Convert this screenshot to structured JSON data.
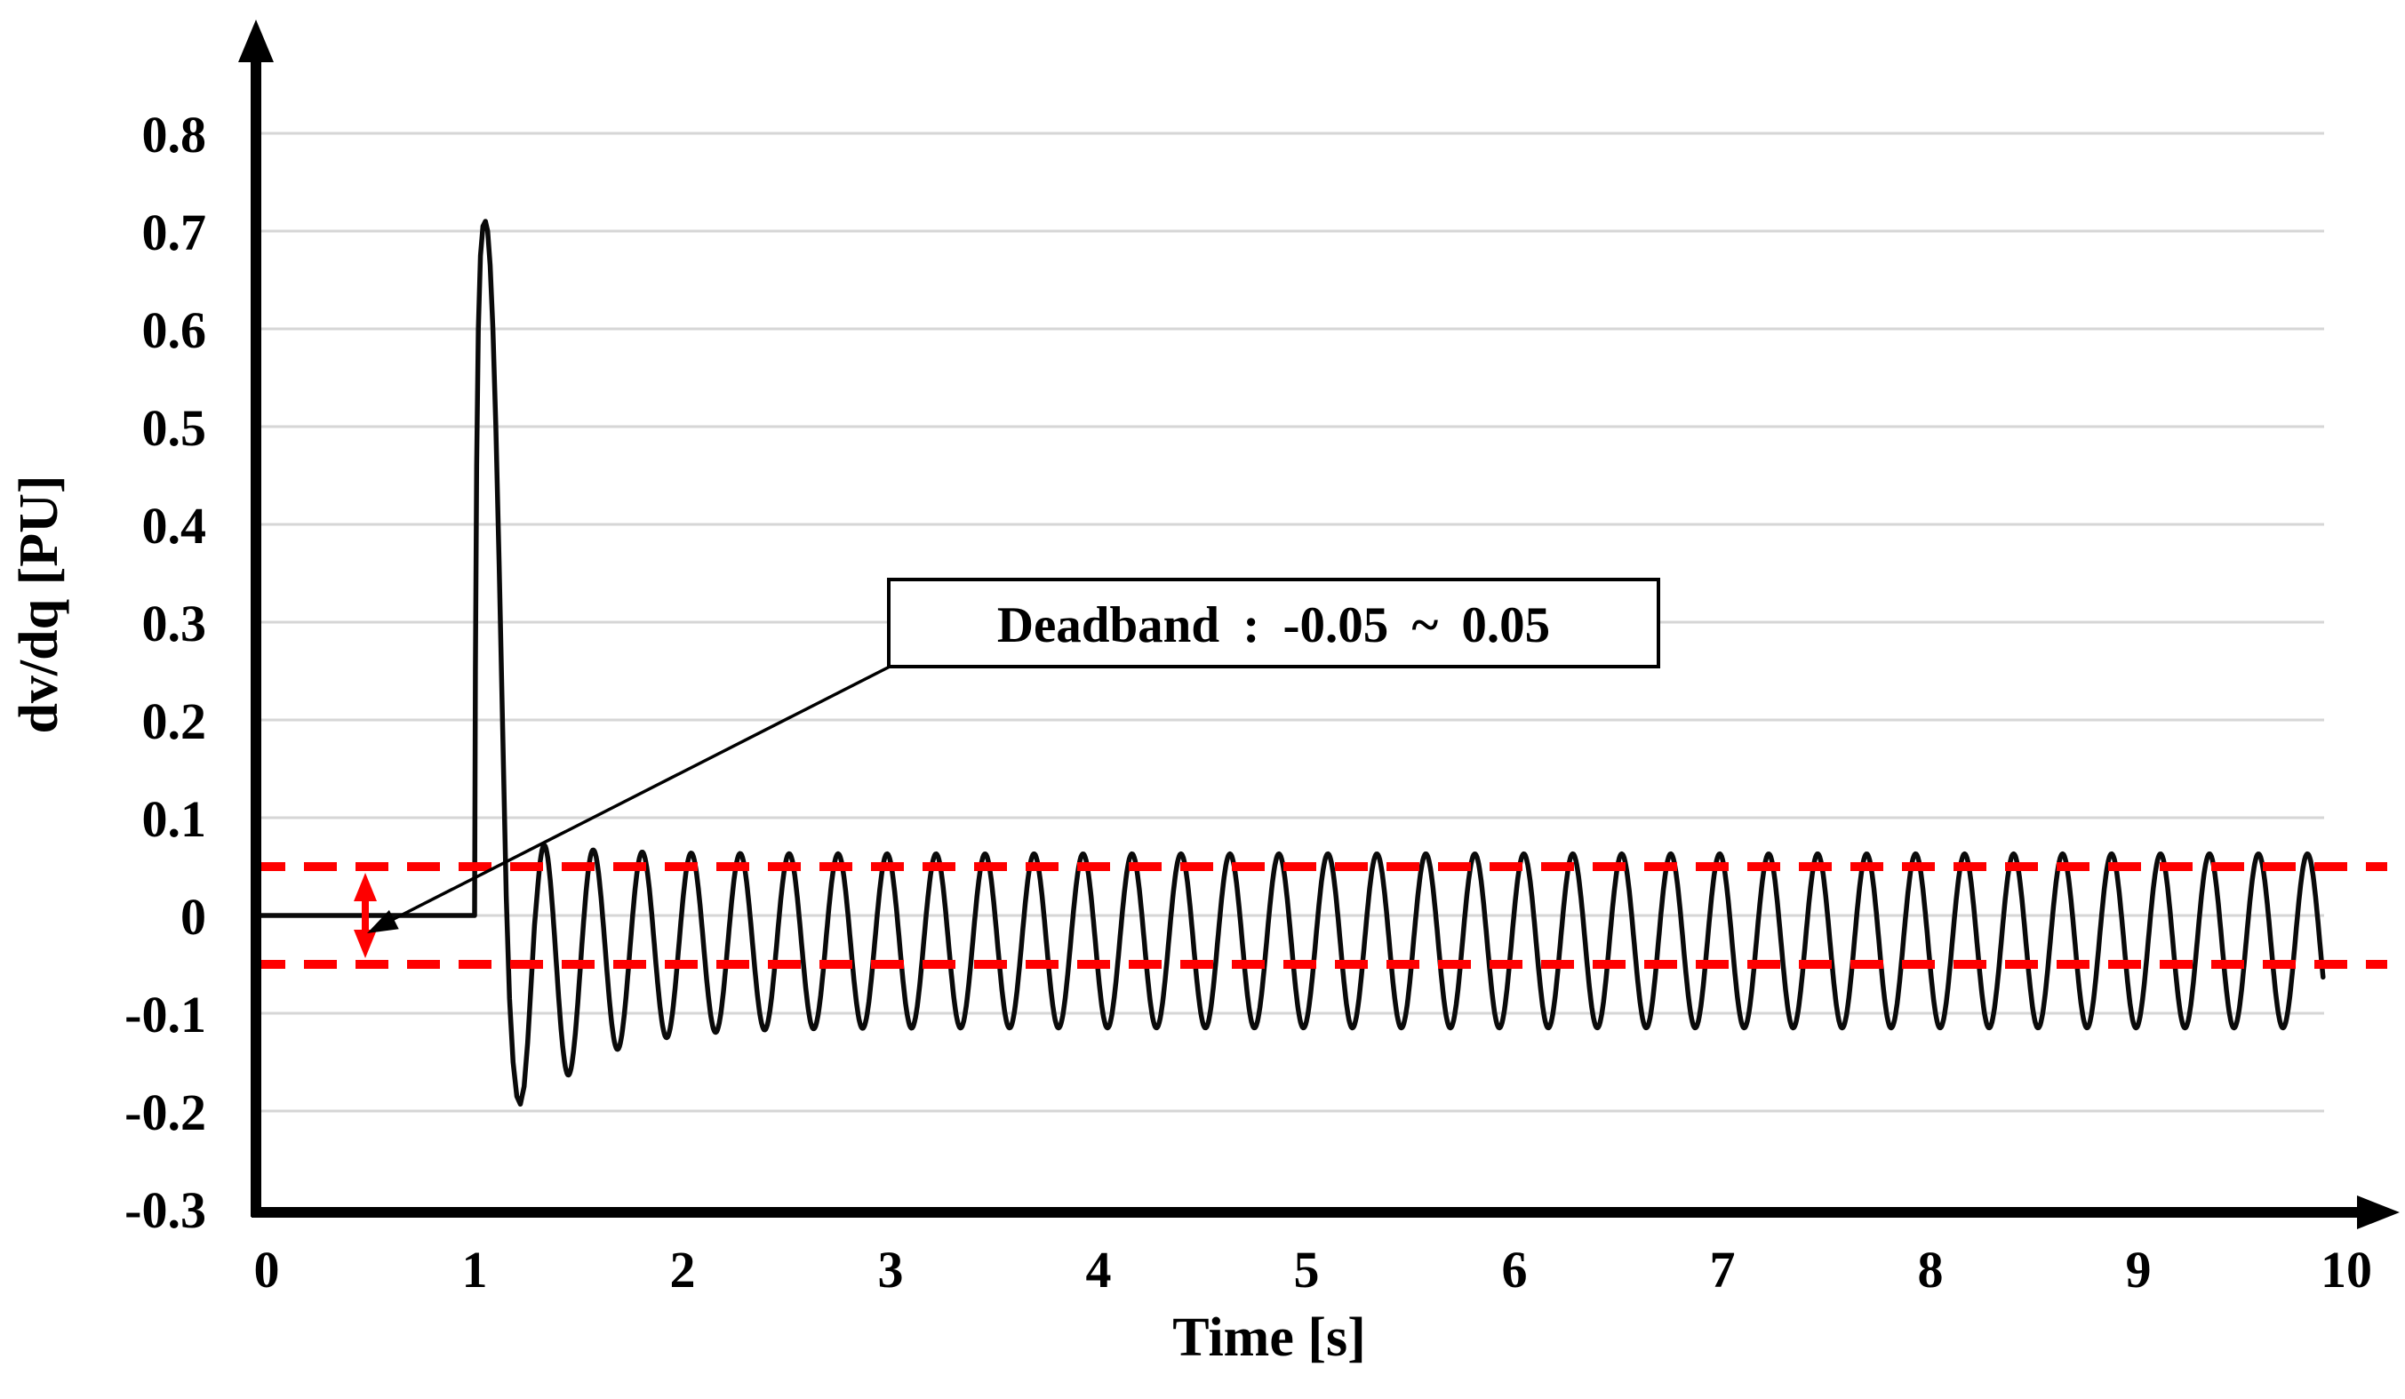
{
  "figure": {
    "ylabel": "dv/dq [PU]",
    "xlabel": "Time [s]",
    "annotation_label": "Deadband :  -0.05 ~ 0.05"
  },
  "chart_data": {
    "type": "line",
    "title": "",
    "xlabel": "Time [s]",
    "ylabel": "dv/dq [PU]",
    "xlim": [
      0,
      10
    ],
    "ylim": [
      -0.3,
      0.85
    ],
    "x_ticks": [
      0,
      1,
      2,
      3,
      4,
      5,
      6,
      7,
      8,
      9,
      10
    ],
    "x_tick_labels": [
      "0",
      "1",
      "2",
      "3",
      "4",
      "5",
      "6",
      "7",
      "8",
      "9",
      "10"
    ],
    "y_ticks": [
      0.8,
      0.7,
      0.6,
      0.5,
      0.4,
      0.3,
      0.2,
      0.1,
      0,
      -0.1,
      -0.2,
      -0.3
    ],
    "y_tick_labels": [
      "0.8",
      "0.7",
      "0.6",
      "0.5",
      "0.4",
      "0.3",
      "0.2",
      "0.1",
      "0",
      "-0.1",
      "-0.2",
      "-0.3"
    ],
    "grid": "horizontal-only",
    "legend": "none",
    "deadband": {
      "low": -0.05,
      "high": 0.05,
      "annotation": "Deadband :  -0.05 ~ 0.05",
      "marker_time": 0.48
    },
    "colors": {
      "series": "#0a0a0a",
      "deadband_lines": "#fe0000",
      "gridlines": "#d6d6d6",
      "axes": "#000000",
      "annotation_box_fill": "#ffffff",
      "annotation_box_border": "#000000"
    },
    "series": [
      {
        "name": "dv/dq",
        "description": "Flat at 0 until t=1 s; transient spike peaking at ~0.71 PU then undershooting to ~-0.19 PU; settles into a sustained oscillation (~4.25 Hz) between ~+0.065 and ~-0.115 PU through t~9.9 s.",
        "flat": {
          "t_start": -0.034,
          "t_end": 1.0,
          "value": 0
        },
        "spike_points": [
          [
            1.0,
            0.0
          ],
          [
            1.004,
            0.25
          ],
          [
            1.01,
            0.46
          ],
          [
            1.018,
            0.6
          ],
          [
            1.028,
            0.675
          ],
          [
            1.04,
            0.705
          ],
          [
            1.052,
            0.71
          ],
          [
            1.063,
            0.7
          ],
          [
            1.075,
            0.665
          ],
          [
            1.088,
            0.6
          ],
          [
            1.102,
            0.5
          ],
          [
            1.118,
            0.36
          ],
          [
            1.135,
            0.19
          ],
          [
            1.152,
            0.02
          ],
          [
            1.168,
            -0.085
          ],
          [
            1.185,
            -0.15
          ],
          [
            1.203,
            -0.185
          ],
          [
            1.22,
            -0.193
          ],
          [
            1.238,
            -0.175
          ],
          [
            1.255,
            -0.13
          ],
          [
            1.272,
            -0.07
          ],
          [
            1.288,
            -0.01
          ],
          [
            1.3,
            0.02
          ]
        ],
        "oscillation": {
          "t_start": 1.3,
          "t_end": 9.89,
          "period_s": 0.2355,
          "peak_reference_t": 1.335,
          "steady_midline": -0.026,
          "midline_transient_extra": -0.035,
          "steady_amplitude": 0.089,
          "amplitude_transient_extra": 0.045,
          "transient_tau_s": 0.3,
          "steady_peak": 0.063,
          "steady_trough": -0.115
        }
      }
    ]
  }
}
